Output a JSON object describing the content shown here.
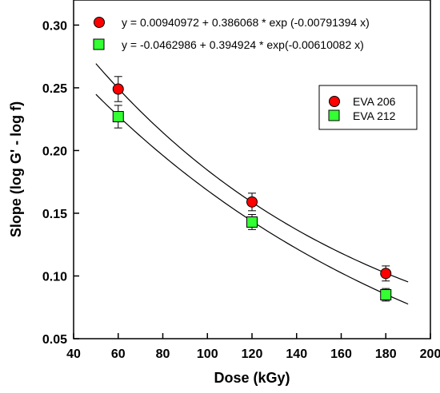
{
  "chart_data": {
    "type": "scatter",
    "title": "",
    "xlabel": "Dose (kGy)",
    "ylabel": "Slope (log G' - log f)",
    "xlim": [
      40,
      200
    ],
    "ylim": [
      0.05,
      0.32
    ],
    "x_ticks": [
      40,
      60,
      80,
      100,
      120,
      140,
      160,
      180,
      200
    ],
    "y_ticks": [
      0.05,
      0.1,
      0.15,
      0.2,
      0.25,
      0.3
    ],
    "x_tick_labels": [
      "40",
      "60",
      "80",
      "100",
      "120",
      "140",
      "160",
      "180",
      "200"
    ],
    "y_tick_labels": [
      "0.05",
      "0.10",
      "0.15",
      "0.20",
      "0.25",
      "0.30"
    ],
    "grid": false,
    "legend_position": "top-right",
    "series": [
      {
        "name": "EVA 206",
        "marker": "circle",
        "color": "#ff0000",
        "x": [
          60,
          120,
          180
        ],
        "y": [
          0.249,
          0.159,
          0.102
        ],
        "error": [
          0.01,
          0.007,
          0.006
        ],
        "fit": {
          "a": 0.00940972,
          "b": 0.386068,
          "c": -0.00791394,
          "x_range": [
            50,
            190
          ]
        },
        "equation": "y = 0.00940972 + 0.386068 * exp (-0.00791394 x)"
      },
      {
        "name": "EVA 212",
        "marker": "square",
        "color": "#33ff33",
        "x": [
          60,
          120,
          180
        ],
        "y": [
          0.227,
          0.143,
          0.085
        ],
        "error": [
          0.009,
          0.006,
          0.005
        ],
        "fit": {
          "a": -0.0462986,
          "b": 0.394924,
          "c": -0.00610082,
          "x_range": [
            50,
            190
          ]
        },
        "equation": "y = -0.0462986 + 0.394924 * exp(-0.00610082 x)"
      }
    ]
  }
}
